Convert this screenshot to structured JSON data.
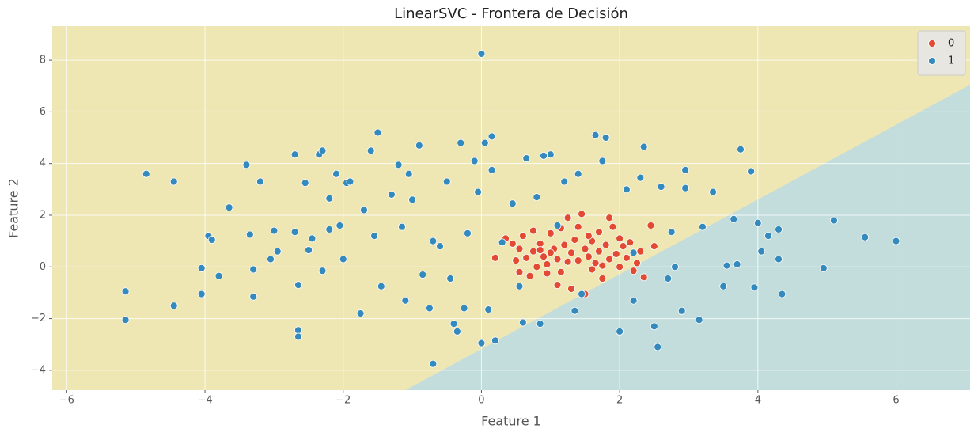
{
  "chart_data": {
    "type": "scatter",
    "title": "LinearSVC - Frontera de Decisión",
    "x_label": "Feature 1",
    "y_label": "Feature 2",
    "xlim": [
      -6.21,
      7.07
    ],
    "ylim": [
      -4.77,
      9.32
    ],
    "xticks": [
      {
        "value": -6,
        "label": "−6"
      },
      {
        "value": -4,
        "label": "−4"
      },
      {
        "value": -2,
        "label": "−2"
      },
      0,
      2,
      4,
      6
    ],
    "yticks": [
      {
        "value": -4,
        "label": "−4"
      },
      {
        "value": -2,
        "label": "−2"
      },
      0,
      2,
      4,
      6,
      8
    ],
    "grid": true,
    "legend_position": "upper-right",
    "region_colors": [
      "#eee6b3",
      "#c2dddb"
    ],
    "decision_boundary": {
      "x": [
        -1.1,
        7.07
      ],
      "y": [
        -4.77,
        7.05
      ]
    },
    "series": [
      {
        "name": "0",
        "color": "#e24a33",
        "x": [
          0.2,
          0.35,
          0.45,
          0.5,
          0.55,
          0.6,
          0.65,
          0.7,
          0.75,
          0.8,
          0.85,
          0.9,
          0.95,
          1.0,
          1.05,
          1.1,
          1.1,
          1.15,
          1.2,
          1.25,
          1.3,
          1.3,
          1.35,
          1.4,
          1.45,
          1.5,
          1.5,
          1.55,
          1.6,
          1.65,
          1.7,
          1.7,
          1.75,
          1.8,
          1.85,
          1.9,
          1.95,
          2.0,
          2.05,
          2.1,
          2.15,
          2.2,
          2.3,
          2.35,
          2.45,
          2.5,
          1.25,
          1.85,
          0.95,
          1.6,
          0.75,
          1.4,
          2.0,
          1.15,
          0.55,
          2.25,
          1.75,
          1.0,
          1.55,
          0.85
        ],
        "values": [
          0.35,
          1.1,
          0.9,
          0.25,
          0.7,
          1.2,
          0.35,
          -0.35,
          0.6,
          0.0,
          0.9,
          0.4,
          0.1,
          1.3,
          0.7,
          -0.7,
          0.3,
          1.5,
          0.85,
          0.2,
          -0.85,
          0.55,
          1.05,
          0.25,
          2.05,
          0.7,
          -1.05,
          0.4,
          1.0,
          0.15,
          0.6,
          1.35,
          -0.45,
          0.85,
          0.3,
          1.55,
          0.5,
          0.0,
          0.8,
          0.35,
          0.95,
          -0.15,
          0.6,
          -0.4,
          1.6,
          0.8,
          1.9,
          1.9,
          -0.25,
          -0.1,
          1.4,
          1.55,
          1.1,
          -0.2,
          -0.2,
          0.15,
          0.05,
          0.55,
          1.2,
          0.65
        ]
      },
      {
        "name": "1",
        "color": "#348abd",
        "x": [
          -5.15,
          -5.15,
          -4.85,
          -4.45,
          -4.45,
          -4.05,
          -4.05,
          -3.95,
          -3.9,
          -3.8,
          -3.65,
          -3.4,
          -3.35,
          -3.3,
          -3.3,
          -3.2,
          -3.05,
          -3.0,
          -2.95,
          -2.7,
          -2.7,
          -2.65,
          -2.65,
          -2.65,
          -2.55,
          -2.5,
          -2.45,
          -2.35,
          -2.3,
          -2.3,
          -2.2,
          -2.2,
          -2.1,
          -2.05,
          -2.0,
          -1.95,
          -1.9,
          -1.75,
          -1.7,
          -1.6,
          -1.55,
          -1.5,
          -1.45,
          -1.3,
          -1.2,
          -1.15,
          -1.1,
          -1.05,
          -1.0,
          -0.9,
          -0.85,
          -0.75,
          -0.7,
          -0.6,
          -0.5,
          -0.45,
          -0.4,
          -0.3,
          -0.25,
          -0.2,
          -0.1,
          -0.05,
          0.0,
          0.05,
          0.15,
          0.15,
          0.2,
          0.0,
          0.1,
          0.3,
          0.45,
          0.55,
          0.6,
          0.65,
          0.8,
          0.85,
          0.9,
          1.0,
          1.1,
          1.2,
          1.35,
          1.45,
          1.65,
          1.75,
          1.8,
          2.0,
          2.1,
          2.2,
          2.3,
          2.35,
          2.5,
          2.55,
          2.6,
          2.7,
          2.75,
          2.9,
          2.95,
          2.95,
          3.15,
          3.35,
          3.5,
          3.55,
          3.65,
          3.7,
          3.75,
          3.9,
          3.95,
          4.0,
          4.05,
          4.15,
          4.3,
          4.3,
          4.35,
          4.95,
          5.1,
          5.55,
          6.0,
          -0.7,
          -0.35,
          1.4,
          2.8,
          2.2,
          3.2
        ],
        "values": [
          -0.95,
          -2.05,
          3.6,
          3.3,
          -1.5,
          -0.05,
          -1.05,
          1.2,
          1.05,
          -0.35,
          2.3,
          3.95,
          1.25,
          -0.1,
          -1.15,
          3.3,
          0.3,
          1.4,
          0.6,
          4.35,
          1.35,
          -2.45,
          -2.7,
          -0.7,
          3.25,
          0.65,
          1.1,
          4.35,
          4.5,
          -0.15,
          1.45,
          2.65,
          3.6,
          1.6,
          0.3,
          3.25,
          3.3,
          -1.8,
          2.2,
          4.5,
          1.2,
          5.2,
          -0.75,
          2.8,
          3.95,
          1.55,
          -1.3,
          3.6,
          2.6,
          4.7,
          -0.3,
          -1.6,
          1.0,
          0.8,
          3.3,
          -0.45,
          -2.2,
          4.8,
          -1.6,
          1.3,
          4.1,
          2.9,
          8.25,
          4.8,
          3.75,
          5.05,
          -2.85,
          -2.95,
          -1.65,
          0.95,
          2.45,
          -0.75,
          -2.15,
          4.2,
          2.7,
          -2.2,
          4.3,
          4.35,
          1.6,
          3.3,
          -1.7,
          -1.05,
          5.1,
          4.1,
          5.0,
          -2.5,
          3.0,
          -1.3,
          3.45,
          4.65,
          -2.3,
          -3.1,
          3.1,
          -0.45,
          1.35,
          -1.7,
          3.05,
          3.75,
          -2.05,
          2.9,
          -0.75,
          0.05,
          1.85,
          0.1,
          4.55,
          3.7,
          -0.8,
          1.7,
          0.6,
          1.2,
          1.45,
          0.3,
          -1.05,
          -0.05,
          1.8,
          1.15,
          1.0,
          -3.75,
          -2.5,
          3.6,
          0.0,
          0.55,
          1.55
        ]
      }
    ]
  }
}
